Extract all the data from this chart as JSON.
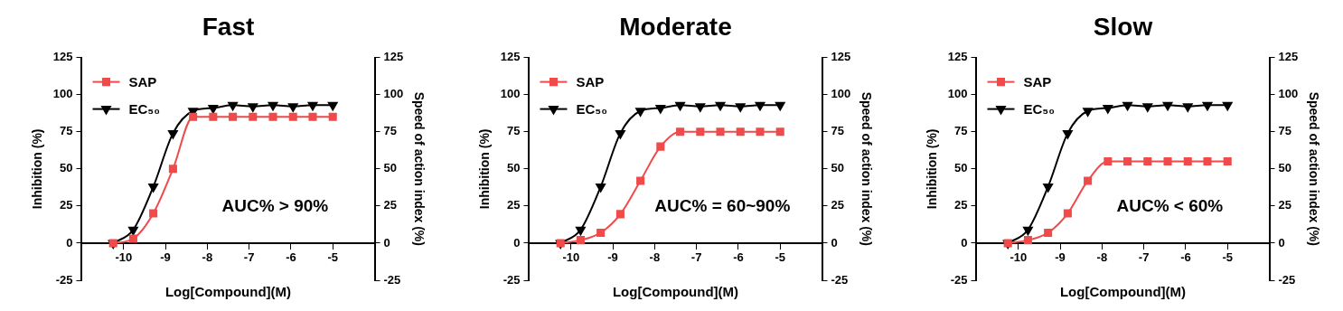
{
  "chart_data": [
    {
      "type": "line",
      "title": "Fast",
      "xlabel": "Log[Compound](M)",
      "ylabel": "Inhibition (%)",
      "y2label": "Speed of action index (%)",
      "x": [
        -10.25,
        -9.77,
        -9.29,
        -8.82,
        -8.34,
        -7.86,
        -7.39,
        -6.91,
        -6.43,
        -5.95,
        -5.48,
        -5
      ],
      "xlim": [
        -11,
        -4
      ],
      "xticks": [
        -10,
        -9,
        -8,
        -7,
        -6,
        -5
      ],
      "ylim": [
        -25,
        125
      ],
      "yticks": [
        -25,
        0,
        25,
        50,
        75,
        100,
        125
      ],
      "y2lim": [
        -25,
        125
      ],
      "y2ticks": [
        -25,
        0,
        25,
        50,
        75,
        100,
        125
      ],
      "legend": "top left",
      "annotations": [
        "AUC% > 90%"
      ],
      "series": [
        {
          "name": "SAP",
          "color": "#f04a4a",
          "marker": "square",
          "values": [
            0,
            3,
            20,
            50,
            85,
            85,
            85,
            85,
            85,
            85,
            85,
            85
          ]
        },
        {
          "name": "EC₅₀",
          "color": "#000000",
          "marker": "triangle",
          "values": [
            0,
            9,
            38,
            74,
            89,
            91,
            93,
            92,
            93,
            92,
            93,
            93
          ]
        }
      ]
    },
    {
      "type": "line",
      "title": "Moderate",
      "xlabel": "Log[Compound](M)",
      "ylabel": "Inhibition (%)",
      "y2label": "Speed of action index (%)",
      "x": [
        -10.25,
        -9.77,
        -9.29,
        -8.82,
        -8.34,
        -7.86,
        -7.39,
        -6.91,
        -6.43,
        -5.95,
        -5.48,
        -5
      ],
      "xlim": [
        -11,
        -4
      ],
      "xticks": [
        -10,
        -9,
        -8,
        -7,
        -6,
        -5
      ],
      "ylim": [
        -25,
        125
      ],
      "yticks": [
        -25,
        0,
        25,
        50,
        75,
        100,
        125
      ],
      "y2lim": [
        -25,
        125
      ],
      "y2ticks": [
        -25,
        0,
        25,
        50,
        75,
        100,
        125
      ],
      "legend": "top left",
      "annotations": [
        "AUC% = 60~90%"
      ],
      "series": [
        {
          "name": "SAP",
          "color": "#f04a4a",
          "marker": "square",
          "values": [
            0,
            2,
            7,
            19.5,
            42,
            65,
            75,
            75,
            75,
            75,
            75,
            75
          ]
        },
        {
          "name": "EC₅₀",
          "color": "#000000",
          "marker": "triangle",
          "values": [
            0,
            9,
            38,
            74,
            89,
            91,
            93,
            92,
            93,
            92,
            93,
            93
          ]
        }
      ]
    },
    {
      "type": "line",
      "title": "Slow",
      "xlabel": "Log[Compound](M)",
      "ylabel": "Inhibition (%)",
      "y2label": "Speed of action index (%)",
      "x": [
        -10.25,
        -9.77,
        -9.29,
        -8.82,
        -8.34,
        -7.86,
        -7.39,
        -6.91,
        -6.43,
        -5.95,
        -5.48,
        -5
      ],
      "xlim": [
        -11,
        -4
      ],
      "xticks": [
        -10,
        -9,
        -8,
        -7,
        -6,
        -5
      ],
      "ylim": [
        -25,
        125
      ],
      "yticks": [
        -25,
        0,
        25,
        50,
        75,
        100,
        125
      ],
      "y2lim": [
        -25,
        125
      ],
      "y2ticks": [
        -25,
        0,
        25,
        50,
        75,
        100,
        125
      ],
      "legend": "top left",
      "annotations": [
        "AUC% < 60%"
      ],
      "series": [
        {
          "name": "SAP",
          "color": "#f04a4a",
          "marker": "square",
          "values": [
            0,
            2,
            7,
            20,
            42,
            55,
            55,
            55,
            55,
            55,
            55,
            55
          ]
        },
        {
          "name": "EC₅₀",
          "color": "#000000",
          "marker": "triangle",
          "values": [
            0,
            9,
            38,
            74,
            89,
            91,
            93,
            92,
            93,
            92,
            93,
            93
          ]
        }
      ]
    }
  ]
}
